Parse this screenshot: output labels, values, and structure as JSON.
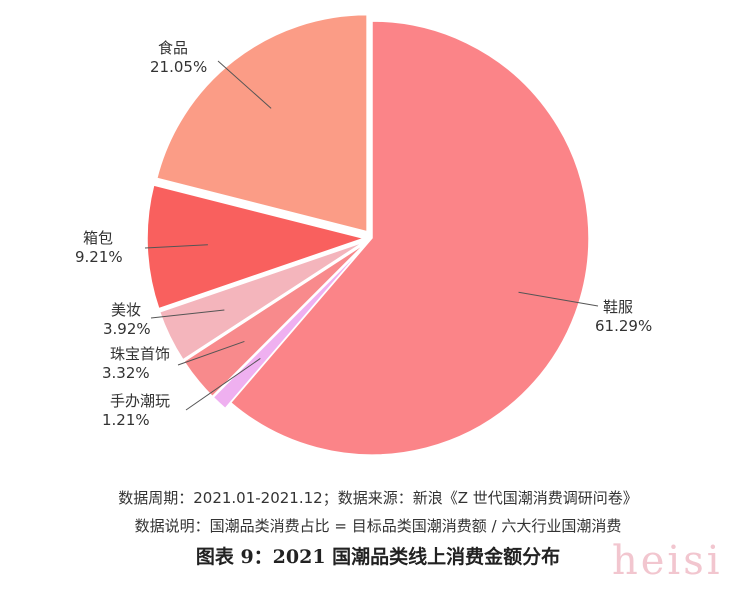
{
  "chart_data": {
    "type": "pie",
    "slices": [
      {
        "label": "鞋服",
        "value": 61.29,
        "display": "61.29%",
        "color": "#fb8488"
      },
      {
        "label": "手办潮玩",
        "value": 1.21,
        "display": "1.21%",
        "color": "#efb0f0"
      },
      {
        "label": "珠宝首饰",
        "value": 3.32,
        "display": "3.32%",
        "color": "#f88a8c"
      },
      {
        "label": "美妆",
        "value": 3.92,
        "display": "3.92%",
        "color": "#f4b5bc"
      },
      {
        "label": "箱包",
        "value": 9.21,
        "display": "9.21%",
        "color": "#f9605e"
      },
      {
        "label": "食品",
        "value": 21.05,
        "display": "21.05%",
        "color": "#fb9c86"
      }
    ]
  },
  "notes": {
    "period": "数据周期：2021.01-2021.12；数据来源：新浪《Z 世代国潮消费调研问卷》",
    "description": "数据说明：国潮品类消费占比 = 目标品类国潮消费额 / 六大行业国潮消费"
  },
  "caption": "图表 9：2021 国潮品类线上消费金额分布",
  "watermark": "heisi"
}
